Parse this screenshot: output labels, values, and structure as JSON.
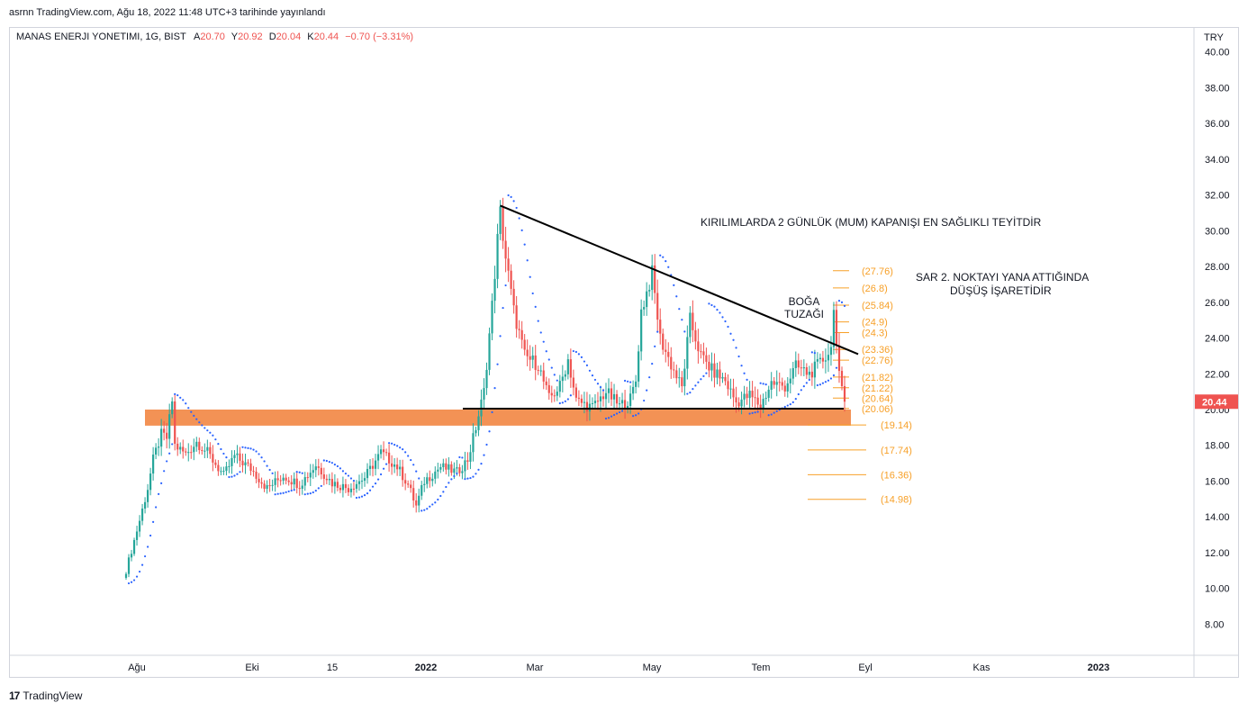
{
  "published": "asrnn TradingView.com, Ağu 18, 2022 11:48 UTC+3 tarihinde yayınlandı",
  "legend": {
    "symbol": "MANAS ENERJI YONETIMI, 1G, BIST",
    "open_label": "A",
    "open": "20.70",
    "high_label": "Y",
    "high": "20.92",
    "low_label": "D",
    "low": "20.04",
    "close_label": "K",
    "close": "20.44",
    "change": "−0.70 (−3.31%)"
  },
  "currency": "TRY",
  "last_price_label": "20.44",
  "footer": {
    "logo": "17",
    "brand": "TradingView"
  },
  "colors": {
    "up": "#26a69a",
    "down": "#ef5350",
    "sar": "#2962ff",
    "zone": "#f28c4c",
    "fib": "#f7a028",
    "price_tag": "#ef5350"
  },
  "chart_data": {
    "type": "candlestick",
    "ylim": [
      7,
      41
    ],
    "y_ticks": [
      "40.00",
      "38.00",
      "36.00",
      "34.00",
      "32.00",
      "30.00",
      "28.00",
      "26.00",
      "24.00",
      "22.00",
      "20.00",
      "18.00",
      "16.00",
      "14.00",
      "12.00",
      "10.00",
      "8.00"
    ],
    "x_labels": [
      "Ağu",
      "Eki",
      "15",
      "2022",
      "Mar",
      "May",
      "Tem",
      "Eyl",
      "Kas",
      "2023"
    ],
    "anchors": [
      {
        "t": 0,
        "c": 11.0
      },
      {
        "t": 5,
        "c": 13.8
      },
      {
        "t": 8,
        "c": 15.6
      },
      {
        "t": 10,
        "c": 17.2
      },
      {
        "t": 13,
        "c": 18.6
      },
      {
        "t": 15,
        "c": 18.4
      },
      {
        "t": 17,
        "c": 20.5
      },
      {
        "t": 18,
        "c": 18.0
      },
      {
        "t": 22,
        "c": 17.5
      },
      {
        "t": 26,
        "c": 18.2
      },
      {
        "t": 30,
        "c": 17.6
      },
      {
        "t": 36,
        "c": 16.3
      },
      {
        "t": 40,
        "c": 17.4
      },
      {
        "t": 46,
        "c": 16.7
      },
      {
        "t": 52,
        "c": 15.6
      },
      {
        "t": 58,
        "c": 16.3
      },
      {
        "t": 64,
        "c": 15.8
      },
      {
        "t": 70,
        "c": 16.9
      },
      {
        "t": 76,
        "c": 15.9
      },
      {
        "t": 82,
        "c": 15.6
      },
      {
        "t": 88,
        "c": 16.2
      },
      {
        "t": 94,
        "c": 17.6
      },
      {
        "t": 100,
        "c": 16.8
      },
      {
        "t": 104,
        "c": 15.8
      },
      {
        "t": 107,
        "c": 14.6
      },
      {
        "t": 110,
        "c": 16.0
      },
      {
        "t": 116,
        "c": 16.8
      },
      {
        "t": 122,
        "c": 16.5
      },
      {
        "t": 126,
        "c": 17.2
      },
      {
        "t": 129,
        "c": 19.0
      },
      {
        "t": 132,
        "c": 21.0
      },
      {
        "t": 135,
        "c": 25.8
      },
      {
        "t": 137,
        "c": 29.5
      },
      {
        "t": 138,
        "c": 31.0
      },
      {
        "t": 140,
        "c": 28.5
      },
      {
        "t": 143,
        "c": 25.5
      },
      {
        "t": 147,
        "c": 23.0
      },
      {
        "t": 152,
        "c": 22.5
      },
      {
        "t": 156,
        "c": 20.6
      },
      {
        "t": 160,
        "c": 21.3
      },
      {
        "t": 163,
        "c": 22.8
      },
      {
        "t": 166,
        "c": 20.5
      },
      {
        "t": 172,
        "c": 20.1
      },
      {
        "t": 177,
        "c": 21.0
      },
      {
        "t": 182,
        "c": 20.2
      },
      {
        "t": 186,
        "c": 20.6
      },
      {
        "t": 188,
        "c": 21.6
      },
      {
        "t": 190,
        "c": 25.5
      },
      {
        "t": 194,
        "c": 27.6
      },
      {
        "t": 197,
        "c": 24.0
      },
      {
        "t": 201,
        "c": 22.5
      },
      {
        "t": 205,
        "c": 21.2
      },
      {
        "t": 208,
        "c": 25.0
      },
      {
        "t": 212,
        "c": 23.0
      },
      {
        "t": 216,
        "c": 22.2
      },
      {
        "t": 221,
        "c": 21.6
      },
      {
        "t": 225,
        "c": 20.4
      },
      {
        "t": 230,
        "c": 20.8
      },
      {
        "t": 234,
        "c": 20.2
      },
      {
        "t": 238,
        "c": 21.5
      },
      {
        "t": 243,
        "c": 21.3
      },
      {
        "t": 247,
        "c": 22.4
      },
      {
        "t": 252,
        "c": 22.0
      },
      {
        "t": 256,
        "c": 22.6
      },
      {
        "t": 260,
        "c": 23.4
      },
      {
        "t": 261,
        "c": 26.0
      },
      {
        "t": 262,
        "c": 23.5
      },
      {
        "t": 263,
        "c": 21.8
      },
      {
        "t": 264,
        "c": 21.0
      },
      {
        "t": 265,
        "c": 20.44
      }
    ],
    "zone": {
      "low": 19.1,
      "high": 20.0
    },
    "fib_levels": [
      "(27.76)",
      "(26.8)",
      "(25.84)",
      "(24.9)",
      "(24.3)",
      "(23.36)",
      "(22.76)",
      "(21.82)",
      "(21.22)",
      "(20.64)",
      "(20.06)",
      "(19.14)",
      "(17.74)",
      "(16.36)",
      "(14.98)"
    ],
    "fib_values": [
      27.76,
      26.8,
      25.84,
      24.9,
      24.3,
      23.36,
      22.76,
      21.82,
      21.22,
      20.64,
      20.06,
      19.14,
      17.74,
      16.36,
      14.98
    ],
    "annotations": {
      "title_note": "KIRILIMLARDA 2 GÜNLÜK (MUM) KAPANIŞI EN SAĞLIKLI TEYİTDİR",
      "sar_note_1": "SAR 2. NOKTAYI YANA ATTIĞINDA",
      "sar_note_2": "DÜŞÜŞ İŞARETİDİR",
      "trap_1": "BOĞA",
      "trap_2": "TUZAĞI"
    },
    "trendline": {
      "t0": 138,
      "v0": 31.4,
      "t1": 270,
      "v1": 23.1
    },
    "support_line": {
      "t0": 130,
      "t1": 267,
      "v": 20.05
    }
  }
}
